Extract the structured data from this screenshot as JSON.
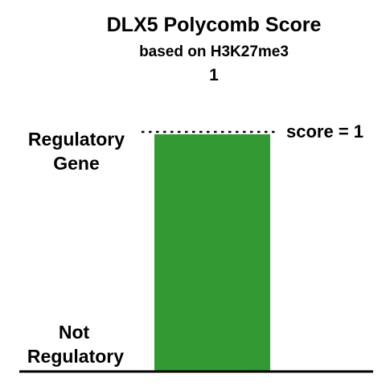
{
  "chart_data": {
    "type": "bar",
    "title": "DLX5 Polycomb Score",
    "subtitle": "based on H3K27me3",
    "value_label": "1",
    "categories": [
      "DLX5"
    ],
    "values": [
      1
    ],
    "ylim": [
      0,
      1
    ],
    "y_tick_labels": {
      "top": [
        "Regulatory",
        "Gene"
      ],
      "bottom": [
        "Not",
        "Regulatory"
      ]
    },
    "reference_line": {
      "value": 1,
      "label": "score = 1",
      "style": "dotted"
    },
    "bar_color": "#339933",
    "grid": false,
    "legend": "none"
  }
}
